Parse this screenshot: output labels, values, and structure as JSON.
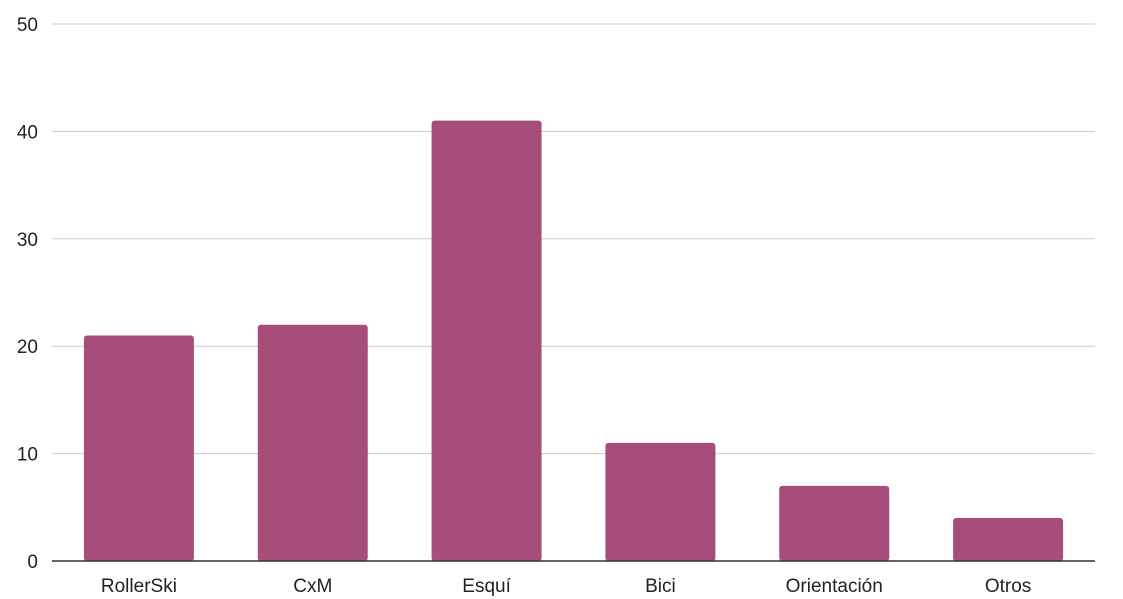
{
  "chart_data": {
    "type": "bar",
    "categories": [
      "RollerSki",
      "CxM",
      "Esquí",
      "Bici",
      "Orientación",
      "Otros"
    ],
    "values": [
      21,
      22,
      41,
      11,
      7,
      4
    ],
    "title": "",
    "xlabel": "",
    "ylabel": "",
    "ylim": [
      0,
      50
    ],
    "yticks": [
      "0",
      "10",
      "20",
      "30",
      "40",
      "50"
    ],
    "grid": true,
    "legend": "none",
    "bar_color": "#a64d79"
  }
}
